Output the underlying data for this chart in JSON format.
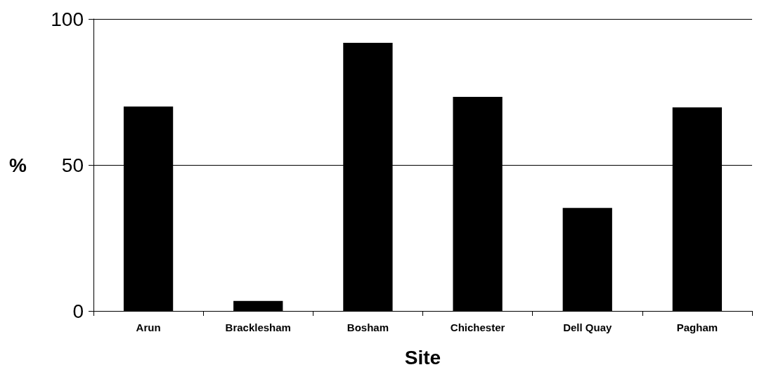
{
  "chart_data": {
    "type": "bar",
    "xlabel": "Site",
    "ylabel": "%",
    "categories": [
      "Arun",
      "Bracklesham",
      "Bosham",
      "Chichester",
      "Dell Quay",
      "Pagham"
    ],
    "values": [
      70,
      3.4,
      91.8,
      73.3,
      35.3,
      69.7
    ],
    "color": "#000000",
    "ylim": [
      0,
      100
    ],
    "yticks": [
      0,
      50,
      100
    ],
    "grid": "y"
  }
}
